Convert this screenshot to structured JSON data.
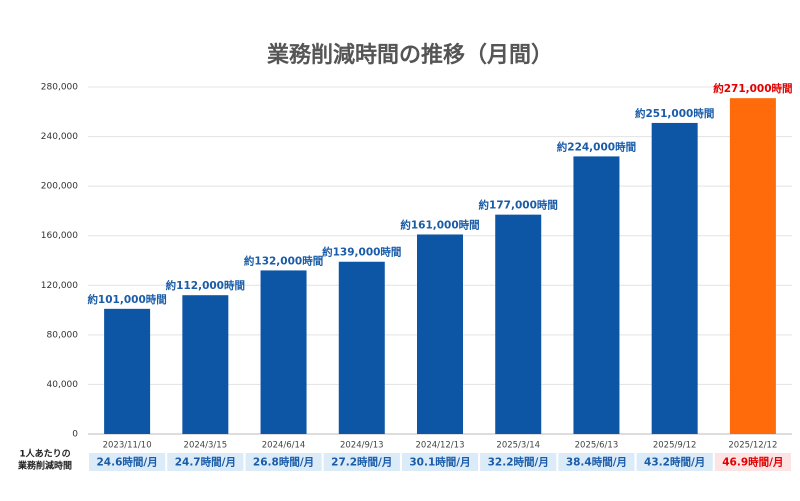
{
  "chart_data": {
    "type": "bar",
    "title": "業務削減時間の推移（月間）",
    "categories": [
      "2023/11/10",
      "2024/3/15",
      "2024/6/14",
      "2024/9/13",
      "2024/12/13",
      "2025/3/14",
      "2025/6/13",
      "2025/9/12",
      "2025/12/12"
    ],
    "values": [
      101000,
      112000,
      132000,
      139000,
      161000,
      177000,
      224000,
      251000,
      271000
    ],
    "value_labels": [
      "約101,000時間",
      "約112,000時間",
      "約132,000時間",
      "約139,000時間",
      "約161,000時間",
      "約177,000時間",
      "約224,000時間",
      "約251,000時間",
      "約271,000時間"
    ],
    "colors": [
      "#0d56a6",
      "#0d56a6",
      "#0d56a6",
      "#0d56a6",
      "#0d56a6",
      "#0d56a6",
      "#0d56a6",
      "#0d56a6",
      "#ff6a0a"
    ],
    "label_colors": [
      "#1a5ca8",
      "#1a5ca8",
      "#1a5ca8",
      "#1a5ca8",
      "#1a5ca8",
      "#1a5ca8",
      "#1a5ca8",
      "#1a5ca8",
      "#e00000"
    ],
    "ylim": [
      0,
      280000
    ],
    "yticks": [
      0,
      {
        "value": 40000,
        "label": "40,000"
      },
      {
        "value": 80000,
        "label": "80,000"
      },
      {
        "value": 120000,
        "label": "120,000"
      },
      {
        "value": 160000,
        "label": "160,000"
      },
      {
        "value": 200000,
        "label": "200,000"
      },
      {
        "value": 240000,
        "label": "240,000"
      },
      {
        "value": 280000,
        "label": "280,000"
      }
    ],
    "grid": true,
    "per_person_label": [
      "1人あたりの",
      "業務削減時間"
    ],
    "per_person": [
      "24.6時間/月",
      "24.7時間/月",
      "26.8時間/月",
      "27.2時間/月",
      "30.1時間/月",
      "32.2時間/月",
      "38.4時間/月",
      "43.2時間/月",
      "46.9時間/月"
    ]
  }
}
